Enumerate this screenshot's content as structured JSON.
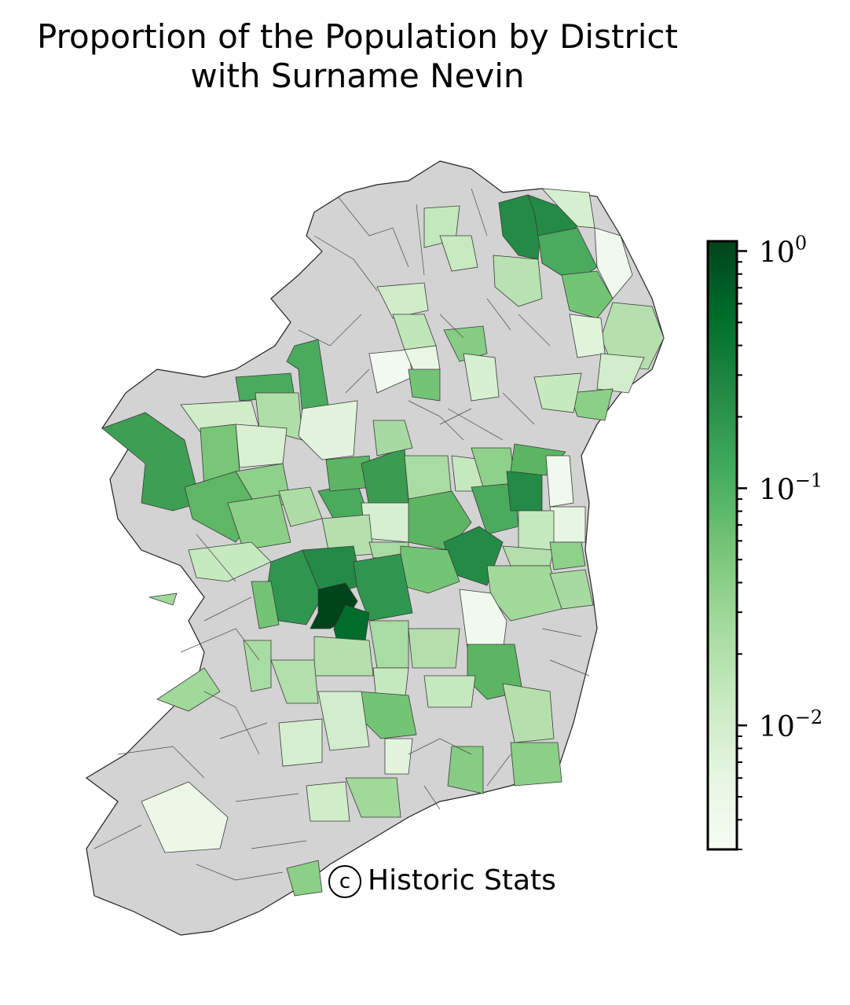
{
  "title_line1": "Proportion of the Population by District",
  "title_line2": "with Surname Nevin",
  "watermark_symbol": "c",
  "watermark_text": "Historic Stats",
  "colorbar": {
    "scale": "log",
    "range": [
      0.003,
      1.1
    ],
    "colormap_low": "#f7fcf5",
    "colormap_high": "#00441b",
    "major_ticks": [
      {
        "value": 1,
        "base": "10",
        "exp": "0"
      },
      {
        "value": 0.1,
        "base": "10",
        "exp": "−1"
      },
      {
        "value": 0.01,
        "base": "10",
        "exp": "−2"
      }
    ]
  },
  "colors": {
    "no_data": "#d3d3d3",
    "border": "#3a3a3a"
  }
}
